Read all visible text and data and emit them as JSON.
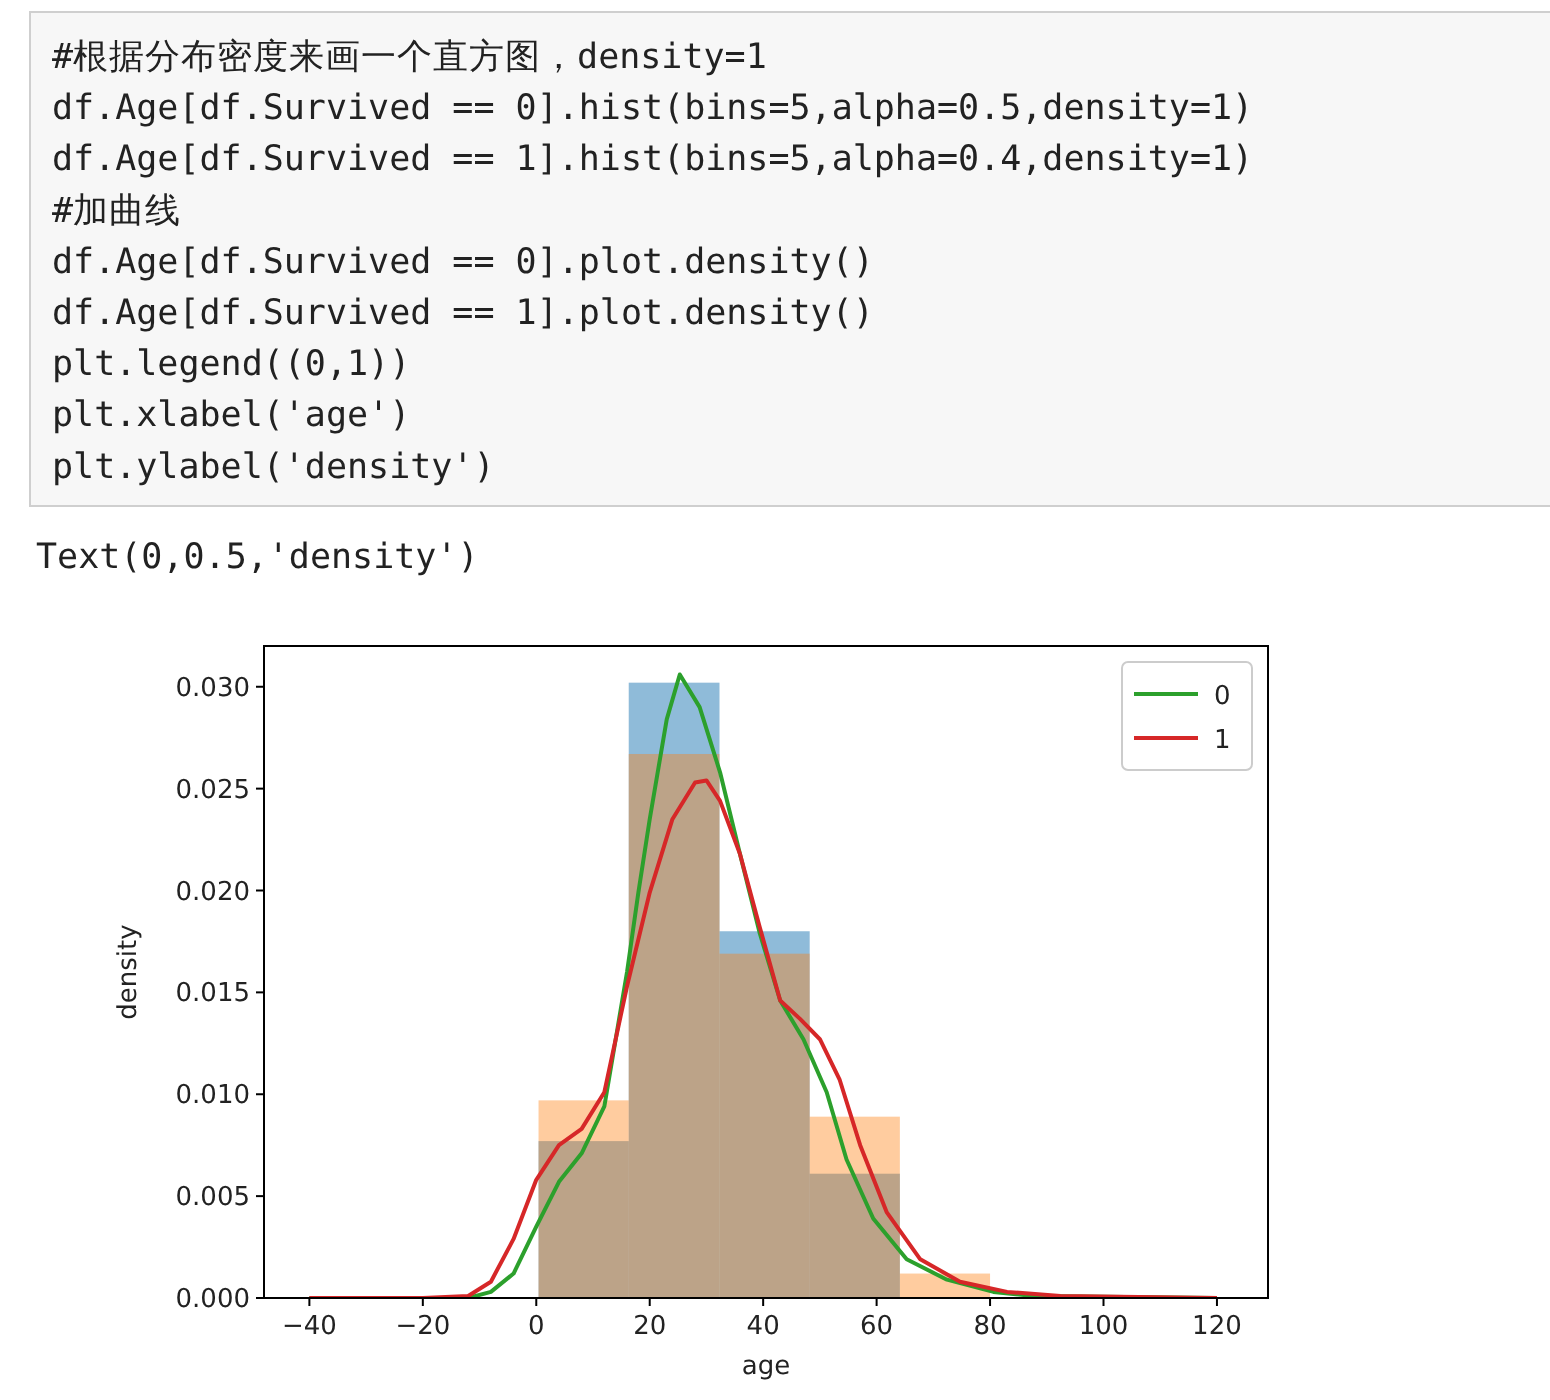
{
  "chart_data": {
    "type": "histogram",
    "xlabel": "age",
    "ylabel": "density",
    "annotations": [
      "#根据分布密度来画一个直方图，density=1",
      "df.Age[df.Survived == 0].hist(bins=5,alpha=0.5,density=1)",
      "df.Age[df.Survived == 1].hist(bins=5,alpha=0.4,density=1)",
      "#加曲线",
      "df.Age[df.Survived == 0].plot.density()",
      "df.Age[df.Survived == 1].plot.density()",
      "plt.legend((0,1))",
      "plt.xlabel('age')",
      "plt.ylabel('density')",
      "Text(0,0.5,'density')"
    ],
    "bins": [
      0.4,
      16.3,
      32.3,
      48.2,
      64.1,
      80
    ],
    "series": [
      {
        "color": "#1f77b4",
        "values": [
          0.0077,
          0.0302,
          0.018,
          0.0061,
          null
        ]
      },
      {
        "color": "#ff7f0e",
        "values": [
          0.0097,
          0.0267,
          0.0169,
          0.0089,
          0.0012
        ]
      },
      {
        "type": "line",
        "name": "0",
        "color": "#2ca02c",
        "x": [
          -40,
          -20,
          -12,
          -8,
          -4,
          0,
          4,
          8,
          12,
          16,
          18,
          20,
          23,
          25.3,
          28.8,
          32.4,
          35.9,
          39.4,
          43,
          47.1,
          51.2,
          54.7,
          59.4,
          65.3,
          72.4,
          80.6,
          87.7,
          120
        ],
        "values": [
          0,
          0,
          0,
          0.0003,
          0.0012,
          0.0035,
          0.0057,
          0.0071,
          0.0094,
          0.016,
          0.0199,
          0.0235,
          0.0284,
          0.0306,
          0.029,
          0.0258,
          0.0218,
          0.0179,
          0.0146,
          0.0127,
          0.0101,
          0.0068,
          0.0039,
          0.0019,
          0.0009,
          0.0003,
          0.0001,
          0
        ]
      },
      {
        "type": "line",
        "name": "1",
        "color": "#d62728",
        "x": [
          -40,
          -20,
          -12,
          -8,
          -4,
          0,
          4,
          8,
          12,
          16,
          20,
          24,
          28,
          30,
          32.4,
          35.9,
          39.4,
          43,
          46.5,
          50,
          53.5,
          57.1,
          61.8,
          67.7,
          74.7,
          83,
          92.4,
          120
        ],
        "values": [
          0,
          0,
          0.0001,
          0.0008,
          0.0029,
          0.0058,
          0.0075,
          0.0083,
          0.0101,
          0.0153,
          0.0199,
          0.0235,
          0.0253,
          0.0254,
          0.0244,
          0.0218,
          0.0182,
          0.0146,
          0.0137,
          0.0127,
          0.0107,
          0.0075,
          0.0042,
          0.0019,
          0.0008,
          0.0003,
          0.0001,
          0
        ]
      }
    ],
    "xlim": [
      -48,
      129
    ],
    "ylim": [
      0,
      0.032
    ],
    "xticks": [
      -40,
      -20,
      0,
      20,
      40,
      60,
      80,
      100,
      120
    ],
    "yticks": [
      {
        "value": 0,
        "label": "0.000"
      },
      {
        "value": 0.005,
        "label": "0.005"
      },
      {
        "value": 0.01,
        "label": "0.010"
      },
      {
        "value": 0.015,
        "label": "0.015"
      },
      {
        "value": 0.02,
        "label": "0.020"
      },
      {
        "value": 0.025,
        "label": "0.025"
      },
      {
        "value": 0.03,
        "label": "0.030"
      }
    ],
    "grid": false,
    "legend": "top right"
  }
}
